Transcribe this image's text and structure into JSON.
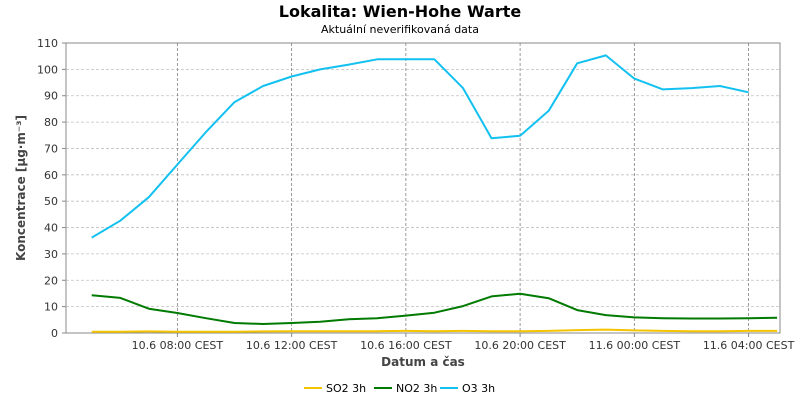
{
  "chart_data": {
    "type": "line",
    "title": "Lokalita: Wien-Hohe  Warte",
    "subtitle": "Aktuální neverifikovaná data",
    "xlabel": "Datum a čas",
    "ylabel": "Koncentrace [µg·m⁻³]",
    "ylim": [
      0,
      110
    ],
    "yticks": [
      0,
      10,
      20,
      30,
      40,
      50,
      60,
      70,
      80,
      90,
      100,
      110
    ],
    "x_hours": [
      5,
      6,
      7,
      8,
      9,
      10,
      11,
      12,
      13,
      14,
      15,
      16,
      17,
      18,
      19,
      20,
      21,
      22,
      23,
      24,
      25,
      26,
      27,
      28,
      29
    ],
    "xlim_hours": [
      4.1,
      29.1
    ],
    "xticks": [
      {
        "hour": 8,
        "label": "10.6 08:00 CEST"
      },
      {
        "hour": 12,
        "label": "10.6 12:00 CEST"
      },
      {
        "hour": 16,
        "label": "10.6 16:00 CEST"
      },
      {
        "hour": 20,
        "label": "10.6 20:00 CEST"
      },
      {
        "hour": 24,
        "label": "11.6 00:00 CEST"
      },
      {
        "hour": 28,
        "label": "11.6 04:00 CEST"
      }
    ],
    "grid": true,
    "legend_position": "bottom",
    "series": [
      {
        "name": "SO2 3h",
        "color": "#f5c400",
        "values": [
          0.5,
          0.5,
          0.6,
          0.5,
          0.5,
          0.5,
          0.6,
          0.7,
          0.7,
          0.7,
          0.7,
          0.8,
          0.7,
          0.8,
          0.7,
          0.7,
          0.8,
          1.1,
          1.3,
          1.0,
          0.8,
          0.7,
          0.7,
          0.8,
          0.8
        ]
      },
      {
        "name": "NO2 3h",
        "color": "#007a00",
        "values": [
          14.3,
          13.3,
          9.2,
          7.6,
          5.6,
          3.8,
          3.4,
          3.8,
          4.3,
          5.2,
          5.6,
          6.6,
          7.7,
          10.2,
          13.9,
          14.9,
          13.2,
          8.7,
          6.8,
          5.9,
          5.6,
          5.5,
          5.5,
          5.6,
          5.8
        ]
      },
      {
        "name": "O3 3h",
        "color": "#13c1f1",
        "values": [
          36.2,
          42.6,
          51.5,
          63.9,
          76.2,
          87.6,
          93.7,
          97.3,
          100.0,
          101.8,
          103.8,
          103.8,
          103.8,
          92.9,
          73.9,
          74.8,
          84.3,
          102.3,
          105.3,
          96.5,
          92.4,
          92.9,
          93.7,
          91.3,
          null
        ]
      }
    ]
  }
}
